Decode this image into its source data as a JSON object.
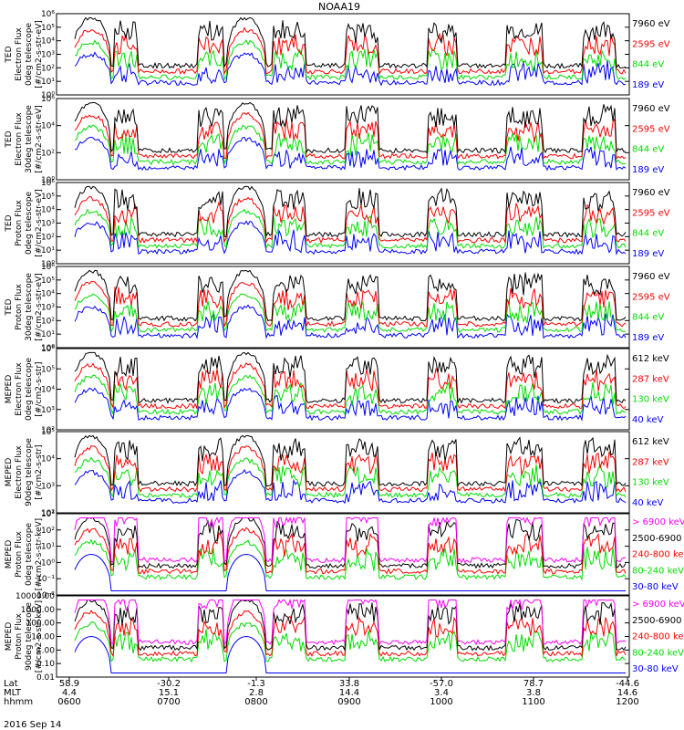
{
  "title": "NOAA19",
  "date_label": "2016 Sep 14",
  "colors": {
    "blue": "#0000ff",
    "red": "#ff0000",
    "green": "#00dd00",
    "black": "#000000",
    "magenta": "#ff00ff"
  },
  "chart_data": {
    "type": "line",
    "x_axis": {
      "row_labels": [
        "Lat",
        "MLT",
        "hhmm"
      ],
      "ticks": [
        {
          "lat": "58.9",
          "mlt": "4.4",
          "hhmm": "0600"
        },
        {
          "lat": "-30.2",
          "mlt": "15.1",
          "hhmm": "0700"
        },
        {
          "lat": "-1.3",
          "mlt": "2.8",
          "hhmm": "0800"
        },
        {
          "lat": "33.8",
          "mlt": "14.4",
          "hhmm": "0900"
        },
        {
          "lat": "-57.0",
          "mlt": "3.4",
          "hhmm": "1000"
        },
        {
          "lat": "78.7",
          "mlt": "3.8",
          "hhmm": "1100"
        },
        {
          "lat": "-44.6",
          "mlt": "14.6",
          "hhmm": "1200"
        }
      ]
    },
    "panels": [
      {
        "ylabel": [
          "TED",
          "Electron Flux",
          "0deg telescope",
          "[#/cm2-s-str-eV]"
        ],
        "yticks": [
          "10⁰",
          "10¹",
          "10²",
          "10³",
          "10⁴",
          "10⁵",
          "10⁶"
        ],
        "ylog": [
          0,
          6
        ],
        "legend": [
          {
            "text": "7960 eV",
            "color": "black"
          },
          {
            "text": "2595 eV",
            "color": "red"
          },
          {
            "text": "844 eV",
            "color": "green"
          },
          {
            "text": "189 eV",
            "color": "blue"
          }
        ]
      },
      {
        "ylabel": [
          "TED",
          "Electron Flux",
          "30deg telescope",
          "[#/cm2-s-str-eV]"
        ],
        "yticks": [
          "10⁰",
          "10²",
          "10⁴",
          "10⁶"
        ],
        "ylog": [
          0,
          6
        ],
        "legend": [
          {
            "text": "7960 eV",
            "color": "black"
          },
          {
            "text": "2595 eV",
            "color": "red"
          },
          {
            "text": "844 eV",
            "color": "green"
          },
          {
            "text": "189 eV",
            "color": "blue"
          }
        ]
      },
      {
        "ylabel": [
          "TED",
          "Proton Flux",
          "0deg telescope",
          "[#/cm2-s-str-eV]"
        ],
        "yticks": [
          "10⁰",
          "10¹",
          "10²",
          "10³",
          "10⁴",
          "10⁵",
          "10⁶"
        ],
        "ylog": [
          0,
          6
        ],
        "legend": [
          {
            "text": "7960 eV",
            "color": "black"
          },
          {
            "text": "2595 eV",
            "color": "red"
          },
          {
            "text": "844 eV",
            "color": "green"
          },
          {
            "text": "189 eV",
            "color": "blue"
          }
        ]
      },
      {
        "ylabel": [
          "TED",
          "Proton Flux",
          "30deg telescope",
          "[#/cm2-s-str-eV]"
        ],
        "yticks": [
          "10⁰",
          "10¹",
          "10²",
          "10³",
          "10⁴",
          "10⁵",
          "10⁶"
        ],
        "ylog": [
          0,
          6
        ],
        "legend": [
          {
            "text": "7960 eV",
            "color": "black"
          },
          {
            "text": "2595 eV",
            "color": "red"
          },
          {
            "text": "844 eV",
            "color": "green"
          },
          {
            "text": "189 eV",
            "color": "blue"
          }
        ]
      },
      {
        "ylabel": [
          "MEPED",
          "Electron Flux",
          "0deg telescope",
          "[#/cm2-s-str]"
        ],
        "yticks": [
          "10²",
          "10³",
          "10⁴",
          "10⁵",
          "10⁶"
        ],
        "ylog": [
          2,
          6
        ],
        "legend": [
          {
            "text": "612 keV",
            "color": "black"
          },
          {
            "text": "287 keV",
            "color": "red"
          },
          {
            "text": "130 keV",
            "color": "green"
          },
          {
            "text": "40 keV",
            "color": "blue"
          }
        ]
      },
      {
        "ylabel": [
          "MEPED",
          "Electron Flux",
          "90deg telescope",
          "[#/cm2-s-str]"
        ],
        "yticks": [
          "10²",
          "10³",
          "10⁴",
          "10⁵"
        ],
        "ylog": [
          2,
          5
        ],
        "legend": [
          {
            "text": "612 keV",
            "color": "black"
          },
          {
            "text": "287 keV",
            "color": "red"
          },
          {
            "text": "130 keV",
            "color": "green"
          },
          {
            "text": "40 keV",
            "color": "blue"
          }
        ]
      },
      {
        "ylabel": [
          "MEPED",
          "Proton Flux",
          "0deg telescope",
          "[#/cm2-s-str-keV]"
        ],
        "yticks": [
          "10⁻²",
          "10⁻¹",
          "10⁰",
          "10¹",
          "10²",
          "10³"
        ],
        "ylog": [
          -2,
          3
        ],
        "legend": [
          {
            "text": "> 6900 keV",
            "color": "magenta"
          },
          {
            "text": "2500-6900",
            "color": "black"
          },
          {
            "text": "240-800 keV",
            "color": "red"
          },
          {
            "text": "80-240 keV",
            "color": "green"
          },
          {
            "text": "30-80 keV",
            "color": "blue"
          }
        ]
      },
      {
        "ylabel": [
          "MEPED",
          "Proton Flux",
          "90deg telescope",
          "[#/cm2-s-str-keV]"
        ],
        "yticks": [
          "0.01",
          "0.10",
          "1.00",
          "10.00",
          "100.00",
          "1000.00",
          "10000.00"
        ],
        "ylog": [
          -2,
          4
        ],
        "legend": [
          {
            "text": "> 6900 keV",
            "color": "magenta"
          },
          {
            "text": "2500-6900",
            "color": "black"
          },
          {
            "text": "240-800 keV",
            "color": "red"
          },
          {
            "text": "80-240 keV",
            "color": "green"
          },
          {
            "text": "30-80 keV",
            "color": "blue"
          }
        ]
      }
    ]
  }
}
